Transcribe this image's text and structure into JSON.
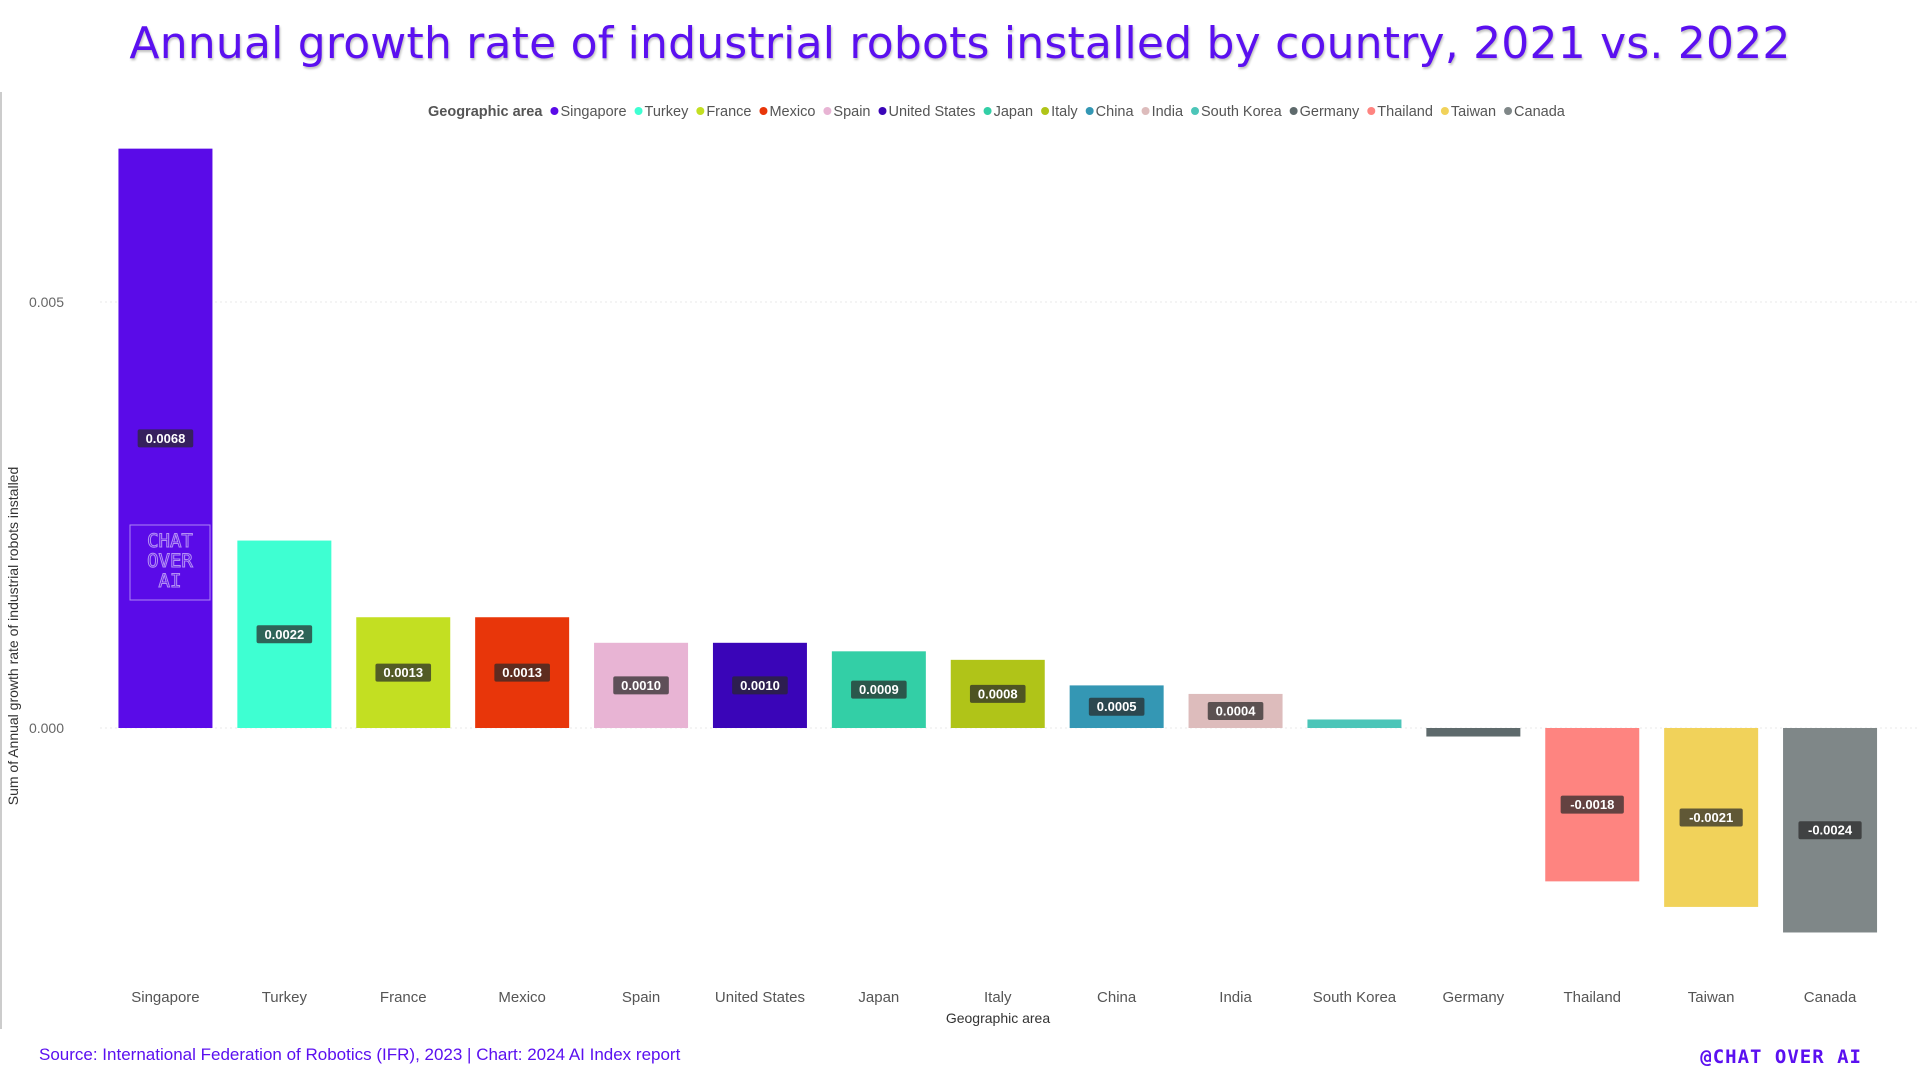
{
  "page": {
    "title": "Annual growth rate of industrial robots installed by country, 2021 vs. 2022",
    "source": "Source: International Federation of Robotics (IFR), 2023 | Chart: 2024 AI Index report",
    "brand": "@CHAT OVER AI"
  },
  "watermark": {
    "line1": "CHAT",
    "line2": "OVER",
    "line3": "AI"
  },
  "chart_data": {
    "type": "bar",
    "title": "Annual growth rate of industrial robots installed by country, 2021 vs. 2022",
    "xlabel": "Geographic area",
    "ylabel": "Sum of Annual growth rate of industrial robots installed",
    "legend_title": "Geographic area",
    "legend_position": "top-center",
    "categories": [
      "Singapore",
      "Turkey",
      "France",
      "Mexico",
      "Spain",
      "United States",
      "Japan",
      "Italy",
      "China",
      "India",
      "South Korea",
      "Germany",
      "Thailand",
      "Taiwan",
      "Canada"
    ],
    "values": [
      0.0068,
      0.0022,
      0.0013,
      0.0013,
      0.001,
      0.001,
      0.0009,
      0.0008,
      0.0005,
      0.0004,
      0.0001,
      -0.0001,
      -0.0018,
      -0.0021,
      -0.0024
    ],
    "data_labels": [
      "0.0068",
      "0.0022",
      "0.0013",
      "0.0013",
      "0.0010",
      "0.0010",
      "0.0009",
      "0.0008",
      "0.0005",
      "0.0004",
      "",
      "",
      "-0.0018",
      "-0.0021",
      "-0.0024"
    ],
    "colors": [
      "#5a0be8",
      "#3effd2",
      "#c3df22",
      "#e8360a",
      "#e8b4d4",
      "#3a05b8",
      "#33cfa6",
      "#b0c418",
      "#3497b4",
      "#ddbcbc",
      "#4cc5b8",
      "#5e6a6c",
      "#fe8480",
      "#f1d25a",
      "#7f8788"
    ],
    "y_ticks": [
      0.0,
      0.005
    ],
    "y_tick_labels": [
      "0.000",
      "0.005"
    ],
    "ylim": [
      -0.0028,
      0.0075
    ],
    "grid": true
  }
}
